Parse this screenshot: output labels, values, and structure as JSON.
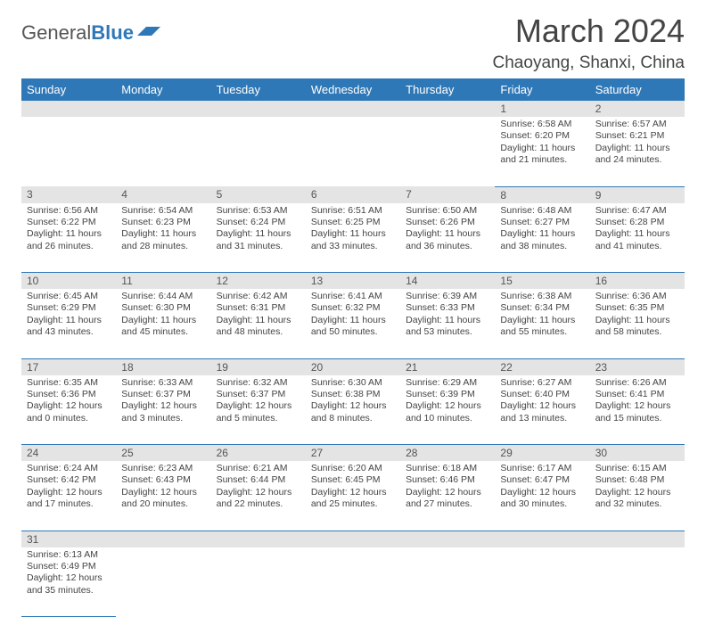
{
  "logo": {
    "text1": "General",
    "text2": "Blue"
  },
  "title": "March 2024",
  "location": "Chaoyang, Shanxi, China",
  "colors": {
    "header_bg": "#2f78b7",
    "header_text": "#ffffff",
    "daynum_bg": "#e4e4e4",
    "row_border": "#2f78b7",
    "body_text": "#444444"
  },
  "weekdays": [
    "Sunday",
    "Monday",
    "Tuesday",
    "Wednesday",
    "Thursday",
    "Friday",
    "Saturday"
  ],
  "weeks": [
    [
      null,
      null,
      null,
      null,
      null,
      {
        "n": "1",
        "sr": "Sunrise: 6:58 AM",
        "ss": "Sunset: 6:20 PM",
        "dl": "Daylight: 11 hours and 21 minutes."
      },
      {
        "n": "2",
        "sr": "Sunrise: 6:57 AM",
        "ss": "Sunset: 6:21 PM",
        "dl": "Daylight: 11 hours and 24 minutes."
      }
    ],
    [
      {
        "n": "3",
        "sr": "Sunrise: 6:56 AM",
        "ss": "Sunset: 6:22 PM",
        "dl": "Daylight: 11 hours and 26 minutes."
      },
      {
        "n": "4",
        "sr": "Sunrise: 6:54 AM",
        "ss": "Sunset: 6:23 PM",
        "dl": "Daylight: 11 hours and 28 minutes."
      },
      {
        "n": "5",
        "sr": "Sunrise: 6:53 AM",
        "ss": "Sunset: 6:24 PM",
        "dl": "Daylight: 11 hours and 31 minutes."
      },
      {
        "n": "6",
        "sr": "Sunrise: 6:51 AM",
        "ss": "Sunset: 6:25 PM",
        "dl": "Daylight: 11 hours and 33 minutes."
      },
      {
        "n": "7",
        "sr": "Sunrise: 6:50 AM",
        "ss": "Sunset: 6:26 PM",
        "dl": "Daylight: 11 hours and 36 minutes."
      },
      {
        "n": "8",
        "sr": "Sunrise: 6:48 AM",
        "ss": "Sunset: 6:27 PM",
        "dl": "Daylight: 11 hours and 38 minutes."
      },
      {
        "n": "9",
        "sr": "Sunrise: 6:47 AM",
        "ss": "Sunset: 6:28 PM",
        "dl": "Daylight: 11 hours and 41 minutes."
      }
    ],
    [
      {
        "n": "10",
        "sr": "Sunrise: 6:45 AM",
        "ss": "Sunset: 6:29 PM",
        "dl": "Daylight: 11 hours and 43 minutes."
      },
      {
        "n": "11",
        "sr": "Sunrise: 6:44 AM",
        "ss": "Sunset: 6:30 PM",
        "dl": "Daylight: 11 hours and 45 minutes."
      },
      {
        "n": "12",
        "sr": "Sunrise: 6:42 AM",
        "ss": "Sunset: 6:31 PM",
        "dl": "Daylight: 11 hours and 48 minutes."
      },
      {
        "n": "13",
        "sr": "Sunrise: 6:41 AM",
        "ss": "Sunset: 6:32 PM",
        "dl": "Daylight: 11 hours and 50 minutes."
      },
      {
        "n": "14",
        "sr": "Sunrise: 6:39 AM",
        "ss": "Sunset: 6:33 PM",
        "dl": "Daylight: 11 hours and 53 minutes."
      },
      {
        "n": "15",
        "sr": "Sunrise: 6:38 AM",
        "ss": "Sunset: 6:34 PM",
        "dl": "Daylight: 11 hours and 55 minutes."
      },
      {
        "n": "16",
        "sr": "Sunrise: 6:36 AM",
        "ss": "Sunset: 6:35 PM",
        "dl": "Daylight: 11 hours and 58 minutes."
      }
    ],
    [
      {
        "n": "17",
        "sr": "Sunrise: 6:35 AM",
        "ss": "Sunset: 6:36 PM",
        "dl": "Daylight: 12 hours and 0 minutes."
      },
      {
        "n": "18",
        "sr": "Sunrise: 6:33 AM",
        "ss": "Sunset: 6:37 PM",
        "dl": "Daylight: 12 hours and 3 minutes."
      },
      {
        "n": "19",
        "sr": "Sunrise: 6:32 AM",
        "ss": "Sunset: 6:37 PM",
        "dl": "Daylight: 12 hours and 5 minutes."
      },
      {
        "n": "20",
        "sr": "Sunrise: 6:30 AM",
        "ss": "Sunset: 6:38 PM",
        "dl": "Daylight: 12 hours and 8 minutes."
      },
      {
        "n": "21",
        "sr": "Sunrise: 6:29 AM",
        "ss": "Sunset: 6:39 PM",
        "dl": "Daylight: 12 hours and 10 minutes."
      },
      {
        "n": "22",
        "sr": "Sunrise: 6:27 AM",
        "ss": "Sunset: 6:40 PM",
        "dl": "Daylight: 12 hours and 13 minutes."
      },
      {
        "n": "23",
        "sr": "Sunrise: 6:26 AM",
        "ss": "Sunset: 6:41 PM",
        "dl": "Daylight: 12 hours and 15 minutes."
      }
    ],
    [
      {
        "n": "24",
        "sr": "Sunrise: 6:24 AM",
        "ss": "Sunset: 6:42 PM",
        "dl": "Daylight: 12 hours and 17 minutes."
      },
      {
        "n": "25",
        "sr": "Sunrise: 6:23 AM",
        "ss": "Sunset: 6:43 PM",
        "dl": "Daylight: 12 hours and 20 minutes."
      },
      {
        "n": "26",
        "sr": "Sunrise: 6:21 AM",
        "ss": "Sunset: 6:44 PM",
        "dl": "Daylight: 12 hours and 22 minutes."
      },
      {
        "n": "27",
        "sr": "Sunrise: 6:20 AM",
        "ss": "Sunset: 6:45 PM",
        "dl": "Daylight: 12 hours and 25 minutes."
      },
      {
        "n": "28",
        "sr": "Sunrise: 6:18 AM",
        "ss": "Sunset: 6:46 PM",
        "dl": "Daylight: 12 hours and 27 minutes."
      },
      {
        "n": "29",
        "sr": "Sunrise: 6:17 AM",
        "ss": "Sunset: 6:47 PM",
        "dl": "Daylight: 12 hours and 30 minutes."
      },
      {
        "n": "30",
        "sr": "Sunrise: 6:15 AM",
        "ss": "Sunset: 6:48 PM",
        "dl": "Daylight: 12 hours and 32 minutes."
      }
    ],
    [
      {
        "n": "31",
        "sr": "Sunrise: 6:13 AM",
        "ss": "Sunset: 6:49 PM",
        "dl": "Daylight: 12 hours and 35 minutes."
      },
      null,
      null,
      null,
      null,
      null,
      null
    ]
  ]
}
